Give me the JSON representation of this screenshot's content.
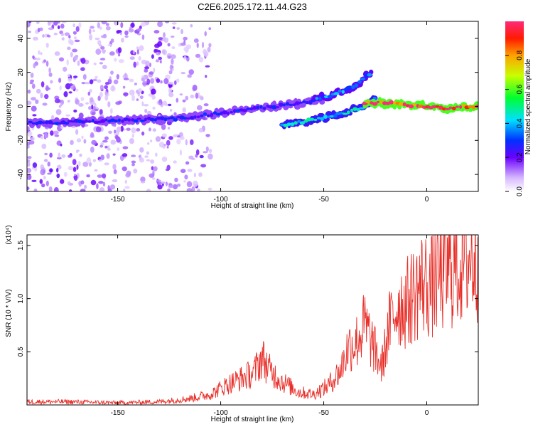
{
  "title": "C2E6.2025.172.11.44.G23",
  "chart_data": [
    {
      "type": "heatmap",
      "xlabel": "Height of straight line (km)",
      "ylabel": "Frequency (Hz)",
      "xlim": [
        -194,
        25
      ],
      "ylim": [
        -50,
        50
      ],
      "xticks": [
        -150,
        -100,
        -50,
        0
      ],
      "yticks": [
        -40,
        -20,
        0,
        20,
        40
      ],
      "colorbar": {
        "label": "Normalized spectral amplitude",
        "range": [
          0,
          1
        ],
        "ticks": [
          0.0,
          0.2,
          0.4,
          0.6,
          0.8
        ]
      },
      "ridges": [
        {
          "x": [
            -194,
            -170,
            -140,
            -120,
            -100,
            -80,
            -60,
            -50
          ],
          "y": [
            -10,
            -9,
            -8,
            -7,
            -4,
            -1,
            2,
            4
          ],
          "amplitude": 0.22
        },
        {
          "x": [
            -55,
            -45,
            -35,
            -27
          ],
          "y": [
            4,
            7,
            12,
            20
          ],
          "amplitude": 0.3
        },
        {
          "x": [
            -70,
            -55,
            -40,
            -30,
            -25
          ],
          "y": [
            -11,
            -8,
            -4,
            0,
            5
          ],
          "amplitude": 0.35
        },
        {
          "x": [
            -30,
            -20,
            -10,
            0,
            10,
            20,
            25
          ],
          "y": [
            2,
            2,
            1,
            0,
            -1,
            0,
            0
          ],
          "amplitude": 0.85
        }
      ],
      "noise_region": [
        -194,
        -105
      ]
    },
    {
      "type": "line",
      "xlabel": "Height of straight line (km)",
      "ylabel": "SNR (10 * V/V)",
      "y_multiplier": "(x10⁴)",
      "xlim": [
        -194,
        25
      ],
      "ylim": [
        0,
        1.6
      ],
      "xticks": [
        -150,
        -100,
        -50,
        0
      ],
      "yticks": [
        0.5,
        1.0,
        1.5
      ],
      "color": "#e8302a",
      "series": [
        {
          "x": [
            -194,
            -175,
            -150,
            -130,
            -115,
            -105,
            -98,
            -90,
            -84,
            -80,
            -76,
            -70,
            -62,
            -55,
            -48,
            -42,
            -38,
            -34,
            -30,
            -26,
            -22,
            -18,
            -14,
            -10,
            -6,
            -2,
            2,
            6,
            10,
            14,
            18,
            22,
            25
          ],
          "y": [
            0.03,
            0.03,
            0.02,
            0.03,
            0.06,
            0.1,
            0.18,
            0.25,
            0.3,
            0.45,
            0.32,
            0.22,
            0.12,
            0.1,
            0.18,
            0.32,
            0.55,
            0.6,
            0.75,
            0.55,
            0.35,
            0.75,
            0.95,
            0.95,
            1.05,
            1.15,
            1.1,
            1.2,
            1.25,
            1.3,
            1.35,
            1.4,
            1.35
          ]
        }
      ]
    }
  ]
}
